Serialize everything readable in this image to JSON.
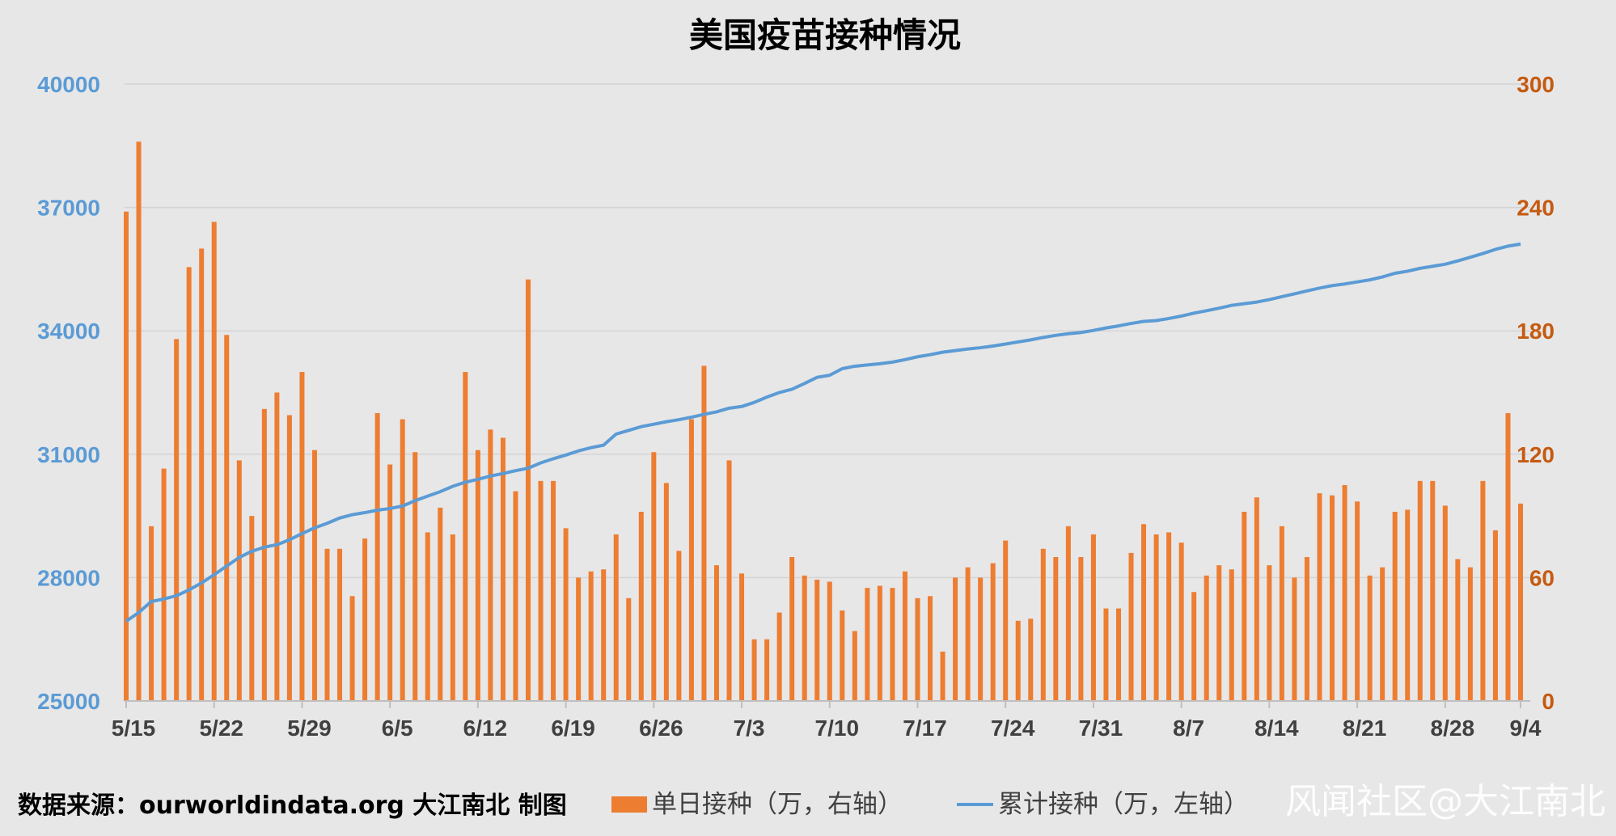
{
  "chart_data": {
    "type": "bar+line",
    "title": "美国疫苗接种情况",
    "x_tick_labels": [
      "5/15",
      "5/22",
      "5/29",
      "6/5",
      "6/12",
      "6/19",
      "6/26",
      "7/3",
      "7/10",
      "7/17",
      "7/24",
      "7/31",
      "8/7",
      "8/14",
      "8/21",
      "8/28",
      "9/4"
    ],
    "x_range": [
      "5/15",
      "9/4"
    ],
    "left_axis": {
      "ylim": [
        25000,
        40000
      ],
      "ticks": [
        "25000",
        "28000",
        "31000",
        "34000",
        "37000",
        "40000"
      ],
      "color": "#5b9bd5"
    },
    "right_axis": {
      "ylim": [
        0,
        300
      ],
      "ticks": [
        "0",
        "60",
        "120",
        "180",
        "240",
        "300"
      ],
      "color": "#c55a11"
    },
    "grid": true,
    "legend_position": "bottom",
    "series": [
      {
        "name": "单日接种（万，右轴）",
        "type": "bar",
        "axis": "right",
        "color": "#ed7d31",
        "values": [
          238,
          272,
          85,
          113,
          176,
          211,
          220,
          233,
          178,
          117,
          90,
          142,
          150,
          139,
          160,
          122,
          74,
          74,
          51,
          79,
          140,
          115,
          137,
          121,
          82,
          94,
          81,
          160,
          122,
          132,
          128,
          102,
          205,
          107,
          107,
          84,
          60,
          63,
          64,
          81,
          50,
          92,
          121,
          106,
          73,
          137,
          163,
          66,
          117,
          62,
          30,
          30,
          43,
          70,
          61,
          59,
          58,
          44,
          34,
          55,
          56,
          55,
          63,
          50,
          51,
          24,
          60,
          65,
          60,
          67,
          78,
          39,
          40,
          74,
          70,
          85,
          70,
          81,
          45,
          45,
          72,
          86,
          81,
          82,
          77,
          53,
          61,
          66,
          64,
          92,
          99,
          66,
          85,
          60,
          70,
          101,
          100,
          105,
          97,
          61,
          65,
          92,
          93,
          107,
          107,
          95,
          69,
          65,
          107,
          83,
          140,
          96
        ]
      },
      {
        "name": "累计接种（万，左轴）",
        "type": "line",
        "axis": "left",
        "color": "#5b9bd5",
        "values": [
          26940,
          27150,
          27420,
          27480,
          27560,
          27700,
          27870,
          28070,
          28280,
          28490,
          28640,
          28740,
          28800,
          28920,
          29070,
          29210,
          29320,
          29450,
          29530,
          29580,
          29640,
          29680,
          29740,
          29870,
          29980,
          30090,
          30220,
          30320,
          30390,
          30470,
          30530,
          30600,
          30660,
          30790,
          30890,
          30980,
          31080,
          31160,
          31220,
          31490,
          31580,
          31670,
          31730,
          31790,
          31840,
          31900,
          31970,
          32030,
          32120,
          32160,
          32260,
          32390,
          32500,
          32580,
          32720,
          32870,
          32920,
          33080,
          33140,
          33170,
          33200,
          33240,
          33300,
          33370,
          33420,
          33480,
          33520,
          33560,
          33590,
          33630,
          33680,
          33730,
          33780,
          33840,
          33890,
          33930,
          33960,
          34010,
          34070,
          34120,
          34180,
          34230,
          34250,
          34300,
          34360,
          34430,
          34490,
          34550,
          34620,
          34660,
          34700,
          34760,
          34830,
          34900,
          34970,
          35040,
          35100,
          35140,
          35190,
          35240,
          35310,
          35400,
          35450,
          35520,
          35570,
          35620,
          35700,
          35790,
          35880,
          35980,
          36060,
          36110
        ]
      }
    ]
  },
  "footer": {
    "source_text": "数据来源：ourworldindata.org 大江南北 制图",
    "watermark": "风闻社区@大江南北"
  }
}
